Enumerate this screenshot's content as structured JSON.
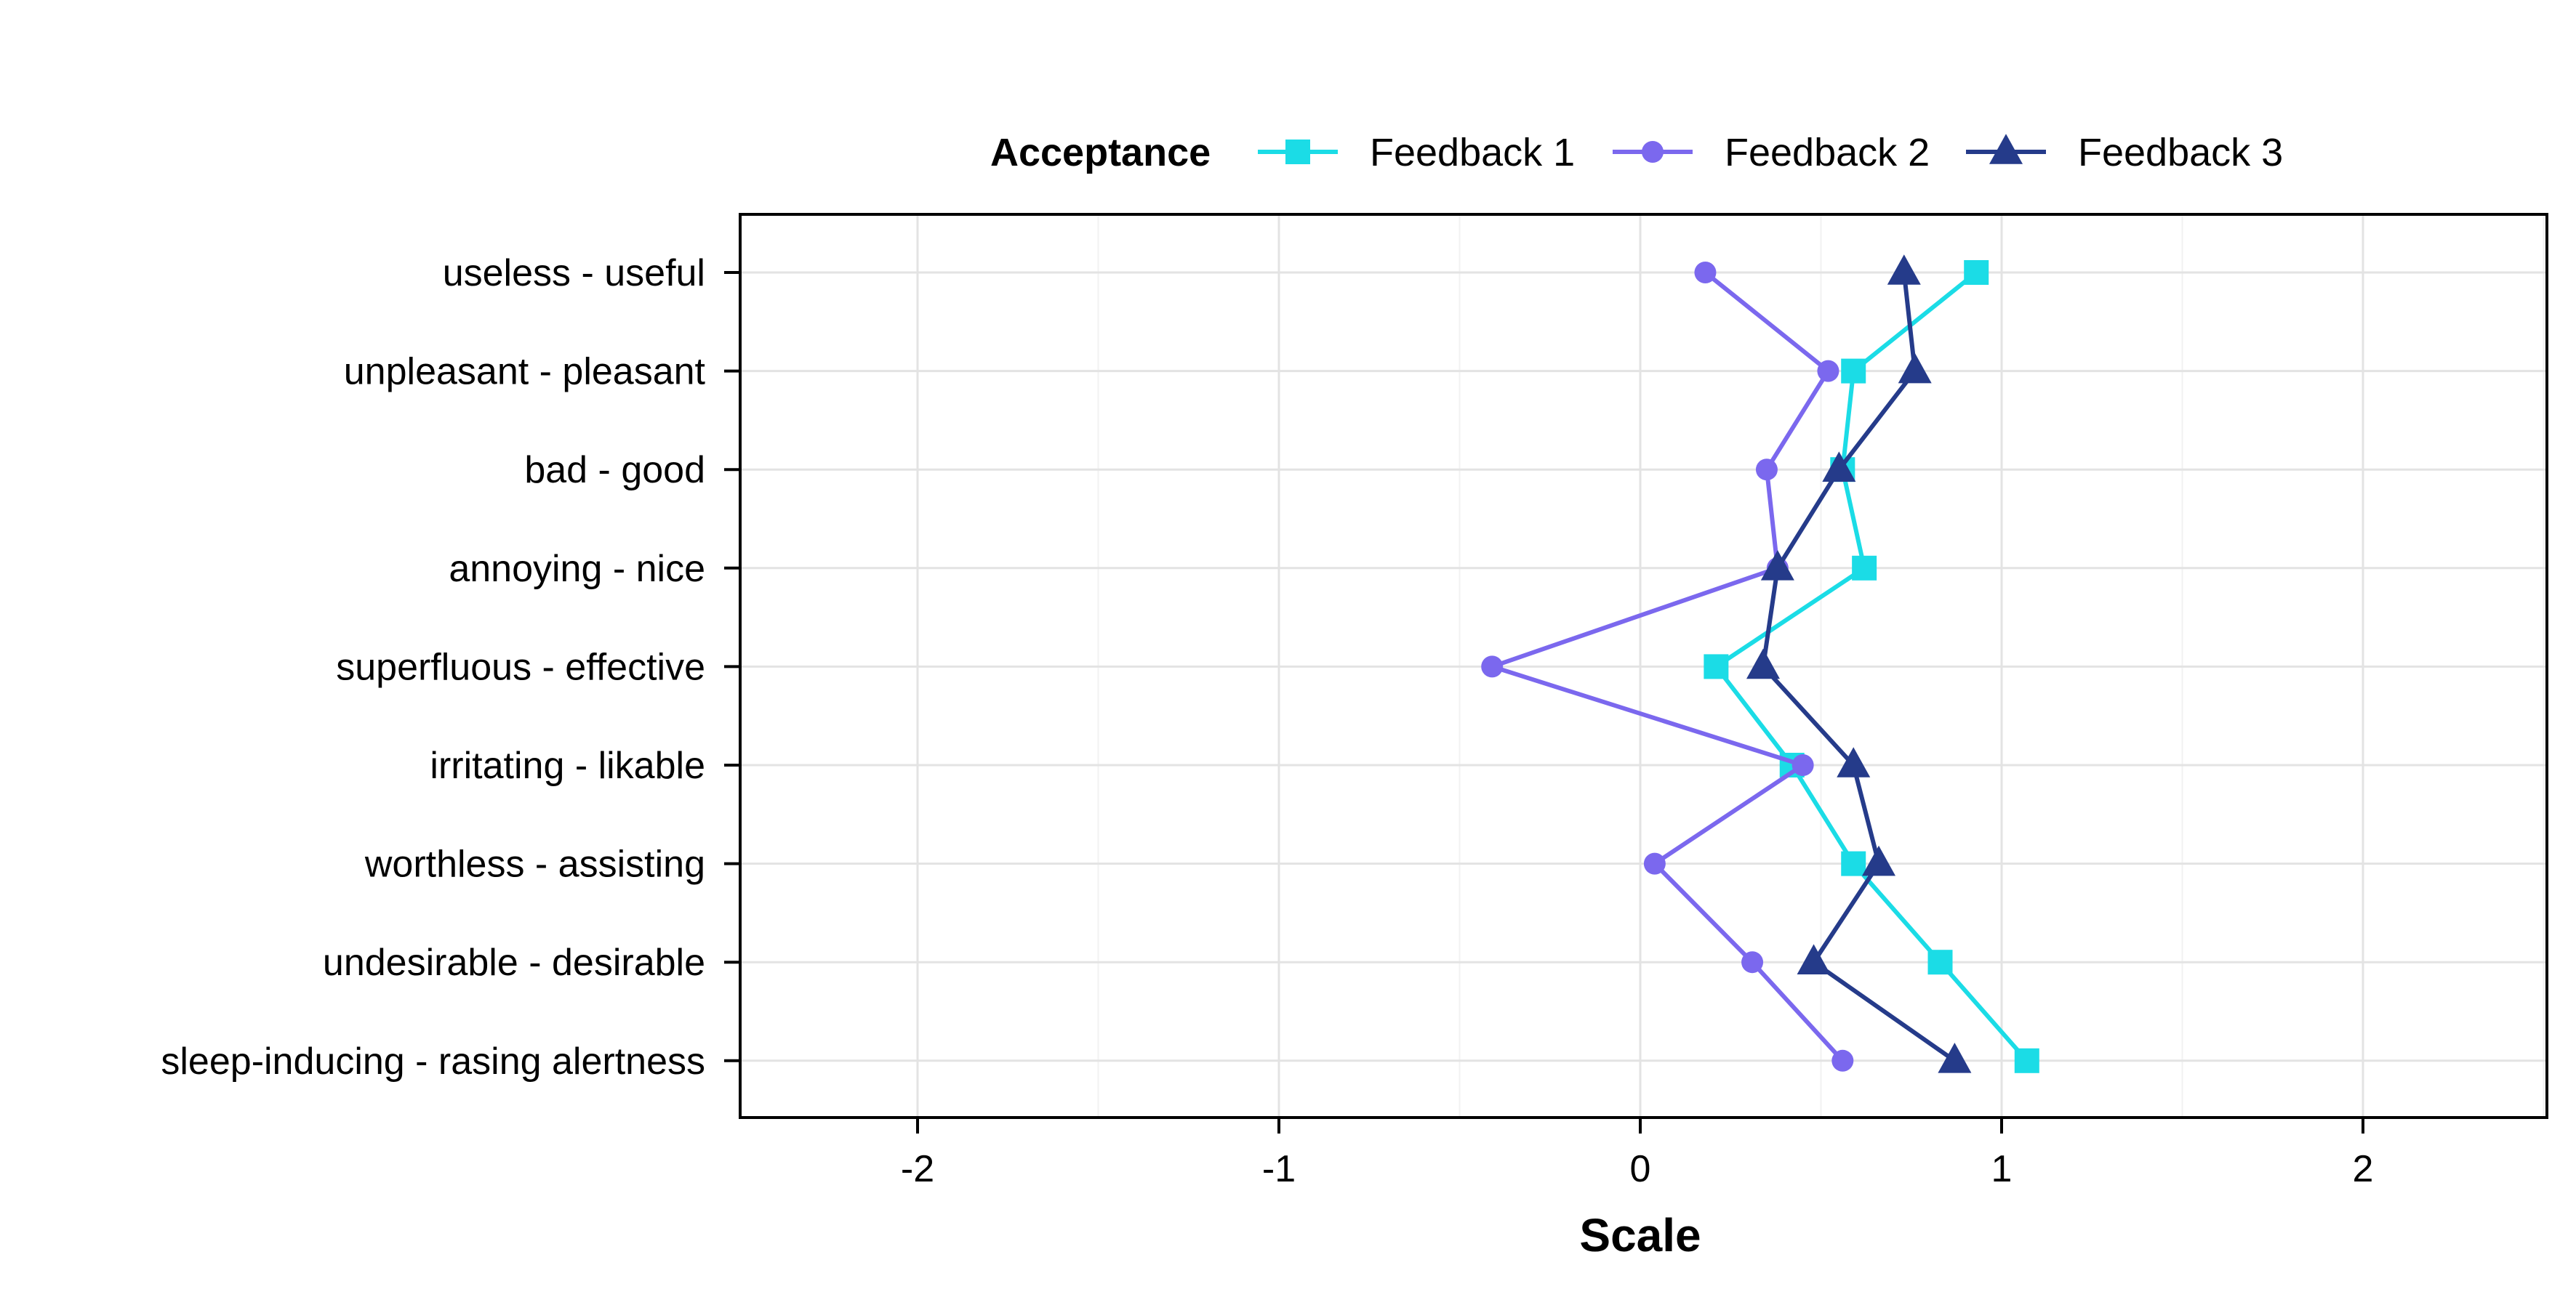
{
  "chart_data": {
    "type": "line",
    "orientation": "horizontal",
    "xlabel": "Scale",
    "ylabel": "",
    "xlim": [
      -2.5,
      2.5
    ],
    "x_ticks": [
      -2,
      -1,
      0,
      1,
      2
    ],
    "x_tick_labels": [
      "-2",
      "-1",
      "0",
      "1",
      "2"
    ],
    "grid": true,
    "legend": {
      "title": "Acceptance",
      "placement": "top"
    },
    "categories": [
      "useless - useful",
      "unpleasant - pleasant",
      "bad - good",
      "annoying - nice",
      "superfluous - effective",
      "irritating - likable",
      "worthless - assisting",
      "undesirable - desirable",
      "sleep-inducing - rasing alertness"
    ],
    "series": [
      {
        "name": "Feedback 1",
        "color": "#1bdce6",
        "marker": "square",
        "values": [
          0.93,
          0.59,
          0.56,
          0.62,
          0.21,
          0.42,
          0.59,
          0.83,
          1.07
        ]
      },
      {
        "name": "Feedback 2",
        "color": "#7b68ee",
        "marker": "circle",
        "values": [
          0.18,
          0.52,
          0.35,
          0.38,
          -0.41,
          0.45,
          0.04,
          0.31,
          0.56
        ]
      },
      {
        "name": "Feedback 3",
        "color": "#253b8a",
        "marker": "triangle",
        "values": [
          0.73,
          0.76,
          0.55,
          0.38,
          0.34,
          0.59,
          0.66,
          0.48,
          0.87
        ]
      }
    ]
  }
}
